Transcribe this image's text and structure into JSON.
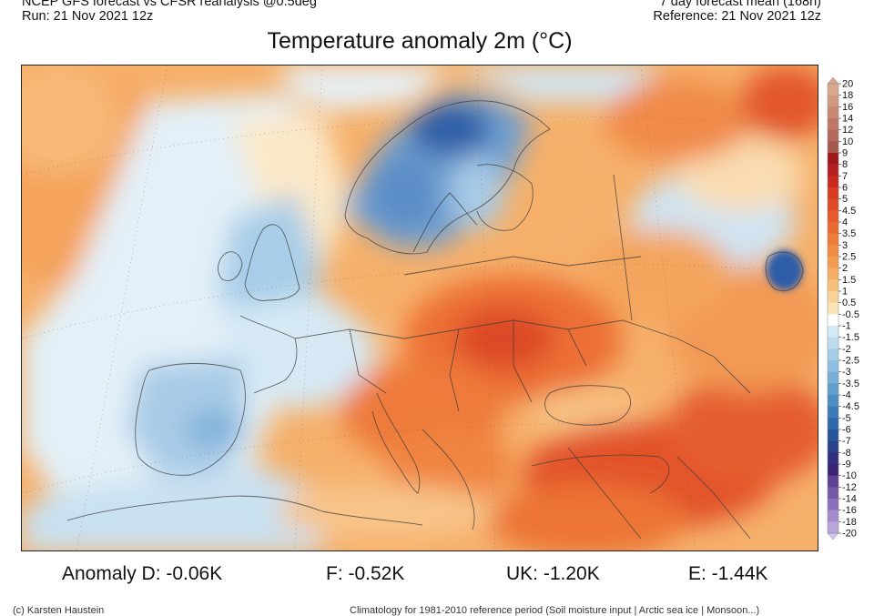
{
  "header": {
    "left_line1": "NCEP GFS forecast vs CFSR reanalysis @0.5deg",
    "left_line2": "Run: 21 Nov 2021 12z",
    "right_line1": "7 day forecast mean (168h)",
    "right_line2": "Reference: 21 Nov 2021 12z"
  },
  "title": "Temperature anomaly 2m (°C)",
  "colorbar": {
    "labels": [
      "20",
      "18",
      "16",
      "14",
      "12",
      "10",
      "9",
      "8",
      "7",
      "6",
      "5",
      "4.5",
      "4",
      "3.5",
      "3",
      "2.5",
      "2",
      "1.5",
      "1",
      "0.5",
      "-0.5",
      "-1",
      "-1.5",
      "-2",
      "-2.5",
      "-3",
      "-3.5",
      "-4",
      "-4.5",
      "-5",
      "-6",
      "-7",
      "-8",
      "-9",
      "-10",
      "-12",
      "-14",
      "-16",
      "-18",
      "-20"
    ],
    "colors": [
      "#d9a98f",
      "#d19980",
      "#c88872",
      "#bf7866",
      "#b5685a",
      "#a8574f",
      "#9e1a1a",
      "#b51f1f",
      "#c8281f",
      "#d83a22",
      "#e14a26",
      "#e65a2c",
      "#ea6a32",
      "#ee7b3a",
      "#f18c44",
      "#f39d52",
      "#f5ae63",
      "#f7c07a",
      "#f9d396",
      "#fbe5b8",
      "#ffffff",
      "#d4e9f6",
      "#bddcf0",
      "#a6cde8",
      "#8ebee0",
      "#78aed6",
      "#629ecc",
      "#4d8ec2",
      "#3b7cb8",
      "#2f68aa",
      "#28549a",
      "#2a418b",
      "#322f80",
      "#3b2276",
      "#5e4195",
      "#7658a8",
      "#8d70bb",
      "#a58bcc",
      "#bba6dc",
      "#d2c4ea"
    ]
  },
  "anomalies": [
    {
      "label": "Anomaly D: -0.06K"
    },
    {
      "label": "F: -0.52K"
    },
    {
      "label": "UK: -1.20K"
    },
    {
      "label": "E: -1.44K"
    }
  ],
  "footer": {
    "credit": "(c) Karsten Haustein",
    "note": "Climatology for 1981-2010 reference period (Soil moisture input | Arctic sea ice | Monsoon...)"
  }
}
